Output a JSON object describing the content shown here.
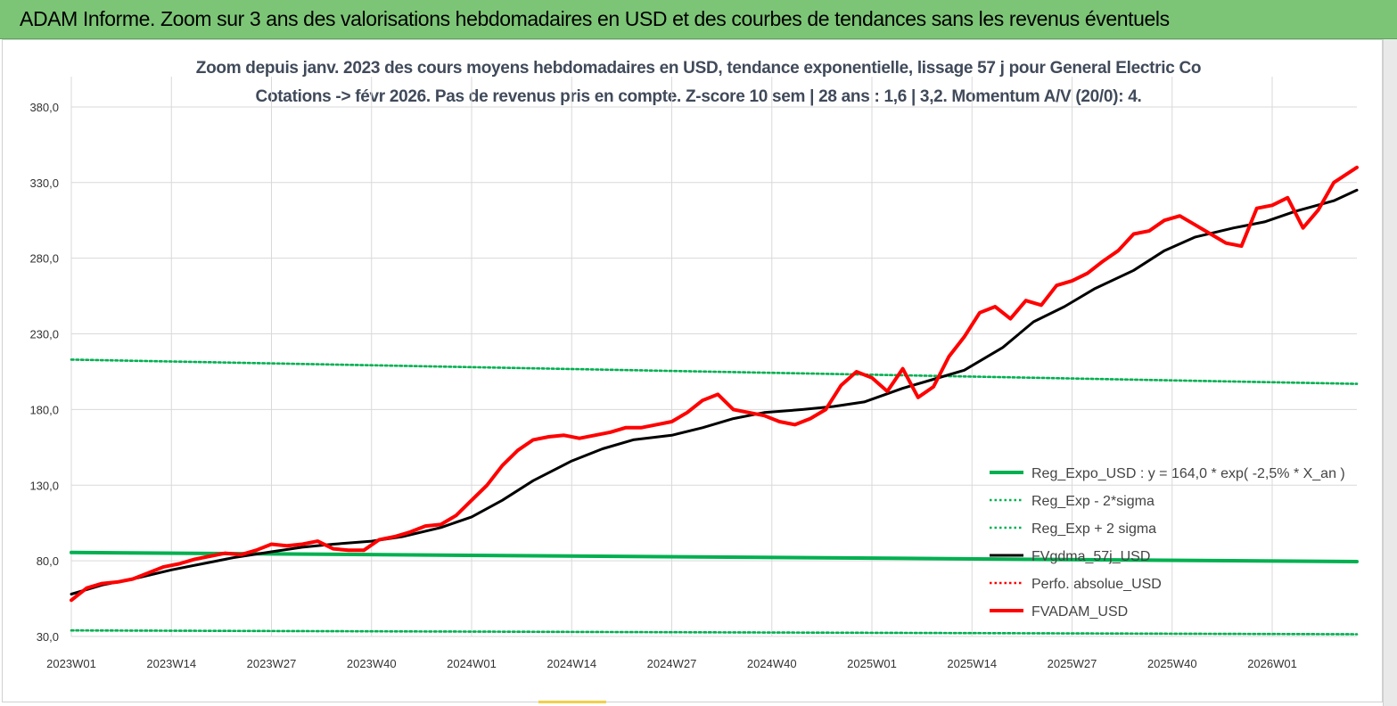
{
  "banner": {
    "title": "ADAM Informe. Zoom sur 3 ans des valorisations hebdomadaires en USD et des courbes de tendances sans les revenus éventuels"
  },
  "chart_data": {
    "type": "line",
    "title": "Zoom depuis janv. 2023 des cours moyens hebdomadaires en USD, tendance exponentielle, lissage 57 j pour General Electric Co",
    "subtitle": "Cotations -> févr 2026. Pas de revenus pris en compte. Z-score 10 sem | 28 ans : 1,6 | 3,2. Momentum A/V (20/0): 4.",
    "xlabel": "",
    "ylabel": "",
    "ylim": [
      30,
      400
    ],
    "y_ticks": [
      "30,0",
      "80,0",
      "130,0",
      "180,0",
      "230,0",
      "280,0",
      "330,0",
      "380,0"
    ],
    "x_ticks": [
      "2023W01",
      "2023W14",
      "2023W27",
      "2023W40",
      "2024W01",
      "2024W14",
      "2024W27",
      "2024W40",
      "2025W01",
      "2025W14",
      "2025W27",
      "2025W40",
      "2026W01"
    ],
    "grid": true,
    "legend_position": "bottom-right",
    "series": [
      {
        "name": "Reg_Expo_USD : y = 164,0 * exp( -2,5% *  X_an )",
        "color": "#00b050",
        "style": "solid-thick",
        "x_week_index": [
          0,
          167
        ],
        "values": [
          85.5,
          79.5
        ]
      },
      {
        "name": "Reg_Exp - 2*sigma",
        "color": "#00b050",
        "style": "dotted",
        "x_week_index": [
          0,
          167
        ],
        "values": [
          34,
          31.5
        ]
      },
      {
        "name": "Reg_Exp + 2 sigma",
        "color": "#00b050",
        "style": "dotted",
        "x_week_index": [
          0,
          167
        ],
        "values": [
          213,
          197
        ]
      },
      {
        "name": "FVgdma_57j_USD",
        "color": "#000000",
        "style": "solid",
        "x_week_index": [
          0,
          4,
          8,
          13,
          17,
          21,
          26,
          30,
          34,
          39,
          43,
          48,
          52,
          56,
          60,
          65,
          69,
          73,
          78,
          82,
          86,
          90,
          95,
          99,
          103,
          108,
          112,
          116,
          121,
          125,
          129,
          133,
          138,
          142,
          146,
          151,
          155,
          159,
          164,
          167
        ],
        "values": [
          58,
          64,
          68,
          74,
          78,
          82,
          86,
          89,
          91,
          93,
          96,
          102,
          109,
          120,
          133,
          146,
          154,
          160,
          163,
          168,
          174,
          178,
          180,
          182,
          185,
          194,
          200,
          206,
          221,
          238,
          248,
          260,
          272,
          285,
          294,
          300,
          304,
          311,
          318,
          325
        ]
      },
      {
        "name": "Perfo. absolue_USD",
        "color": "#ff0000",
        "style": "dotted",
        "x_week_index": [],
        "values": []
      },
      {
        "name": "FVADAM_USD",
        "color": "#ff0000",
        "style": "solid-thick",
        "x_week_index": [
          0,
          2,
          4,
          6,
          8,
          10,
          12,
          14,
          16,
          18,
          20,
          22,
          24,
          26,
          28,
          30,
          32,
          34,
          36,
          38,
          40,
          42,
          44,
          46,
          48,
          50,
          52,
          54,
          56,
          58,
          60,
          62,
          64,
          66,
          68,
          70,
          72,
          74,
          76,
          78,
          80,
          82,
          84,
          86,
          88,
          90,
          92,
          94,
          96,
          98,
          100,
          102,
          104,
          106,
          108,
          110,
          112,
          114,
          116,
          118,
          120,
          122,
          124,
          126,
          128,
          130,
          132,
          134,
          136,
          138,
          140,
          142,
          144,
          146,
          148,
          150,
          152,
          154,
          156,
          158,
          160,
          162,
          164,
          167
        ],
        "values": [
          54,
          62,
          65,
          66,
          68,
          72,
          76,
          78,
          81,
          83,
          85,
          84,
          87,
          91,
          90,
          91,
          93,
          88,
          87,
          87,
          94,
          96,
          99,
          103,
          104,
          110,
          120,
          130,
          143,
          153,
          160,
          162,
          163,
          161,
          163,
          165,
          168,
          168,
          170,
          172,
          178,
          186,
          190,
          180,
          178,
          176,
          172,
          170,
          174,
          180,
          196,
          205,
          201,
          192,
          207,
          188,
          195,
          215,
          228,
          244,
          248,
          240,
          252,
          249,
          262,
          265,
          270,
          278,
          285,
          296,
          298,
          305,
          308,
          302,
          296,
          290,
          288,
          313,
          315,
          320,
          300,
          312,
          330,
          340
        ]
      }
    ]
  }
}
